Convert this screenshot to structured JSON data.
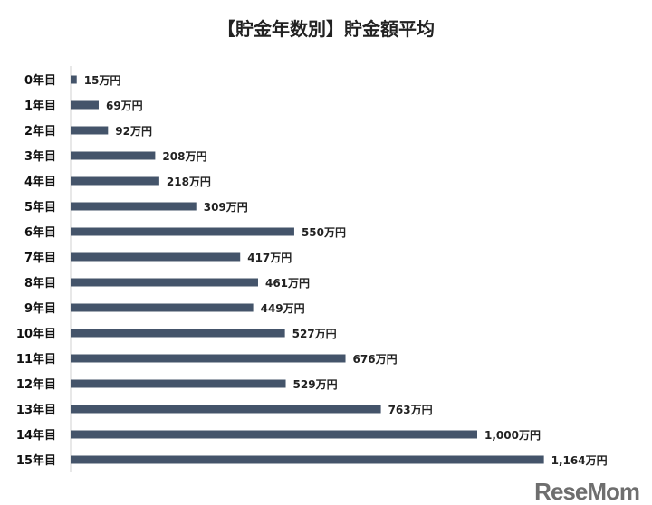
{
  "chart_data": {
    "type": "bar",
    "orientation": "horizontal",
    "title": "【貯金年数別】貯金額平均",
    "categories": [
      "0年目",
      "1年目",
      "2年目",
      "3年目",
      "4年目",
      "5年目",
      "6年目",
      "7年目",
      "8年目",
      "9年目",
      "10年目",
      "11年目",
      "12年目",
      "13年目",
      "14年目",
      "15年目"
    ],
    "values": [
      15,
      69,
      92,
      208,
      218,
      309,
      550,
      417,
      461,
      449,
      527,
      676,
      529,
      763,
      1000,
      1164
    ],
    "data_labels": [
      "15万円",
      "69万円",
      "92万円",
      "208万円",
      "218万円",
      "309万円",
      "550万円",
      "417万円",
      "461万円",
      "449万円",
      "527万円",
      "676万円",
      "529万円",
      "763万円",
      "1,000万円",
      "1,164万円"
    ],
    "unit": "万円",
    "xlim": [
      0,
      1300
    ],
    "grid": false,
    "bar_color": "#44546a"
  },
  "watermark": "ReseMom"
}
